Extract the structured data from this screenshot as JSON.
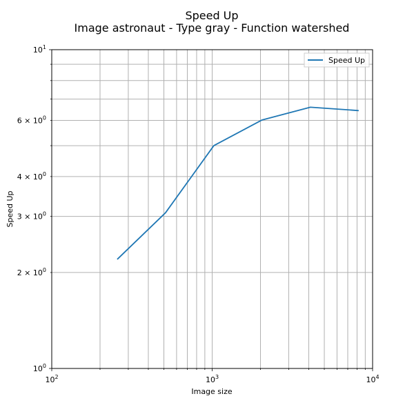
{
  "chart_data": {
    "type": "line",
    "title": "Speed Up",
    "subtitle": "Image astronaut - Type gray - Function watershed",
    "xlabel": "Image size",
    "ylabel": "Speed Up",
    "xscale": "log",
    "yscale": "log",
    "xlim": [
      100,
      10000
    ],
    "ylim": [
      1,
      10
    ],
    "grid": "on (major and minor)",
    "legend_position": "top-right",
    "x_tick_labels": [
      "10^2",
      "10^3",
      "10^4"
    ],
    "y_tick_labels": [
      "10^0",
      "2 × 10^0",
      "3 × 10^0",
      "4 × 10^0",
      "6 × 10^0",
      "10^1"
    ],
    "series": [
      {
        "name": "Speed Up",
        "color": "#1f77b4",
        "x": [
          256,
          512,
          1024,
          2048,
          4096,
          8192
        ],
        "y": [
          2.2,
          3.08,
          5.0,
          6.02,
          6.6,
          6.44
        ]
      }
    ]
  }
}
